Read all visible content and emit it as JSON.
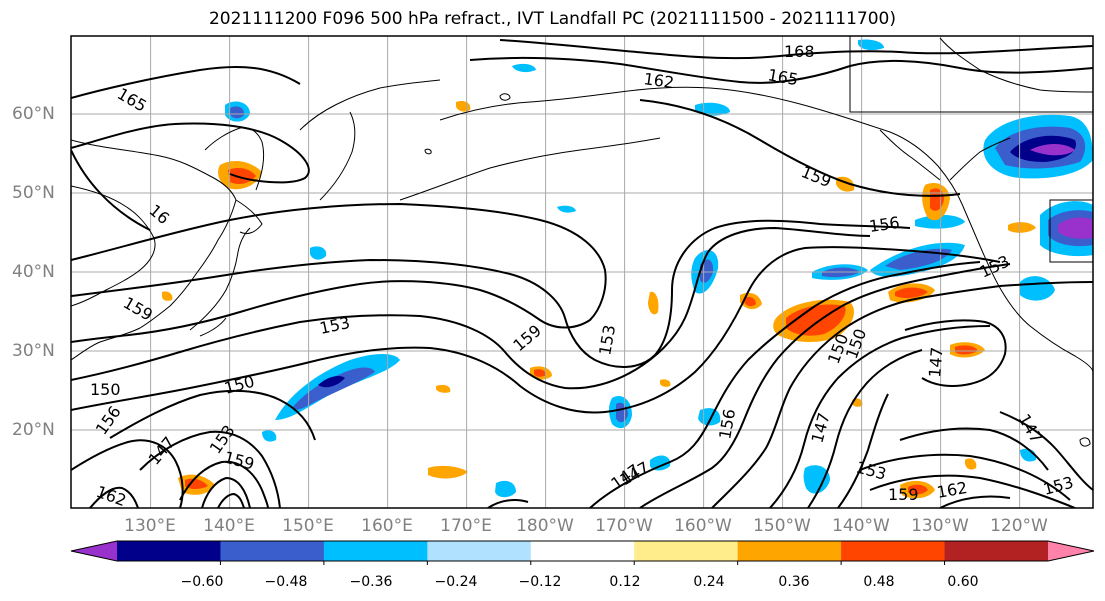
{
  "title": "2021111200 F096 500 hPa refract., IVT Landfall PC (2021111500 - 2021111700)",
  "latitude_labels": [
    "60°N",
    "50°N",
    "40°N",
    "30°N",
    "20°N"
  ],
  "longitude_labels": [
    "130°E",
    "140°E",
    "150°E",
    "160°E",
    "170°E",
    "180°W",
    "170°W",
    "160°W",
    "150°W",
    "140°W",
    "130°W",
    "120°W"
  ],
  "contour_labels": [
    "165",
    "168",
    "162",
    "165",
    "159",
    "156",
    "153",
    "16",
    "159",
    "150",
    "153",
    "159",
    "153",
    "150",
    "150",
    "156",
    "147",
    "153",
    "159",
    "156",
    "147",
    "150",
    "147",
    "147",
    "153",
    "159",
    "162",
    "153",
    "147",
    "147",
    "162"
  ],
  "colorbar": {
    "ticks": [
      "−0.60",
      "−0.48",
      "−0.36",
      "−0.24",
      "−0.12",
      "0.12",
      "0.24",
      "0.36",
      "0.48",
      "0.60"
    ],
    "colors": [
      "#9932cc",
      "#00008b",
      "#3a5fcd",
      "#00bfff",
      "#b0e2ff",
      "#ffffff",
      "#ffec8b",
      "#ffa500",
      "#ff4500",
      "#b22222",
      "#ff82ab"
    ]
  }
}
